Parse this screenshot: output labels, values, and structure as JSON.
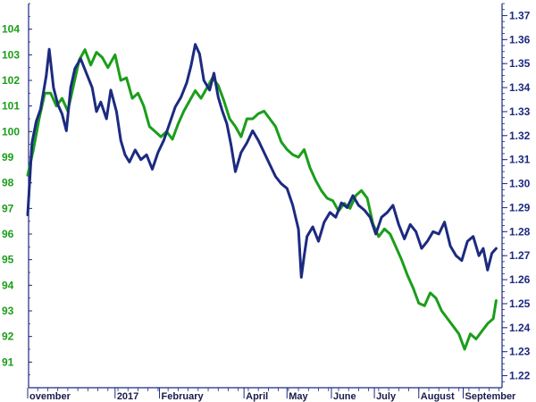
{
  "chart_data": {
    "type": "line",
    "title": "",
    "xlabel": "",
    "x_tick_labels": [
      "ovember",
      "2017",
      "February",
      "April",
      "May",
      "June",
      "July",
      "August",
      "September"
    ],
    "x_range": [
      "2016-11-01",
      "2017-09-30"
    ],
    "left_axis": {
      "ylim": [
        90,
        105
      ],
      "ticks": [
        91,
        92,
        93,
        94,
        95,
        96,
        97,
        98,
        99,
        100,
        101,
        102,
        103,
        104
      ],
      "color": "#1a9e1a"
    },
    "right_axis": {
      "ylim": [
        1.215,
        1.375
      ],
      "ticks": [
        1.22,
        1.23,
        1.24,
        1.25,
        1.26,
        1.27,
        1.28,
        1.29,
        1.3,
        1.31,
        1.32,
        1.33,
        1.34,
        1.35,
        1.36,
        1.37
      ],
      "color": "#1c2a80"
    },
    "grid": false,
    "legend": "none",
    "series": [
      {
        "axis": "left",
        "color": "#1a9e1a",
        "points": [
          [
            "2016-11-01",
            98.3
          ],
          [
            "2016-11-05",
            99.3
          ],
          [
            "2016-11-09",
            100.5
          ],
          [
            "2016-11-13",
            101.5
          ],
          [
            "2016-11-17",
            101.5
          ],
          [
            "2016-11-21",
            101.0
          ],
          [
            "2016-11-25",
            101.3
          ],
          [
            "2016-11-29",
            100.8
          ],
          [
            "2016-12-03",
            101.8
          ],
          [
            "2016-12-07",
            102.8
          ],
          [
            "2016-12-11",
            103.2
          ],
          [
            "2016-12-15",
            102.6
          ],
          [
            "2016-12-19",
            103.1
          ],
          [
            "2016-12-23",
            102.9
          ],
          [
            "2016-12-27",
            102.5
          ],
          [
            "2017-01-01",
            103.0
          ],
          [
            "2017-01-05",
            102.0
          ],
          [
            "2017-01-09",
            102.1
          ],
          [
            "2017-01-13",
            101.3
          ],
          [
            "2017-01-17",
            101.5
          ],
          [
            "2017-01-21",
            101.0
          ],
          [
            "2017-01-25",
            100.2
          ],
          [
            "2017-01-29",
            100.0
          ],
          [
            "2017-02-02",
            99.8
          ],
          [
            "2017-02-06",
            100.0
          ],
          [
            "2017-02-10",
            99.7
          ],
          [
            "2017-02-14",
            100.3
          ],
          [
            "2017-02-18",
            100.8
          ],
          [
            "2017-02-22",
            101.2
          ],
          [
            "2017-02-26",
            101.6
          ],
          [
            "2017-03-02",
            101.3
          ],
          [
            "2017-03-06",
            101.7
          ],
          [
            "2017-03-10",
            102.1
          ],
          [
            "2017-03-14",
            101.8
          ],
          [
            "2017-03-18",
            101.2
          ],
          [
            "2017-03-22",
            100.5
          ],
          [
            "2017-03-26",
            100.2
          ],
          [
            "2017-03-30",
            99.8
          ],
          [
            "2017-04-03",
            100.5
          ],
          [
            "2017-04-07",
            100.5
          ],
          [
            "2017-04-11",
            100.7
          ],
          [
            "2017-04-15",
            100.8
          ],
          [
            "2017-04-19",
            100.5
          ],
          [
            "2017-04-23",
            100.2
          ],
          [
            "2017-04-27",
            99.6
          ],
          [
            "2017-05-01",
            99.3
          ],
          [
            "2017-05-05",
            99.1
          ],
          [
            "2017-05-09",
            99.0
          ],
          [
            "2017-05-13",
            99.3
          ],
          [
            "2017-05-17",
            98.6
          ],
          [
            "2017-05-21",
            98.1
          ],
          [
            "2017-05-25",
            97.7
          ],
          [
            "2017-05-29",
            97.4
          ],
          [
            "2017-06-02",
            97.3
          ],
          [
            "2017-06-06",
            96.9
          ],
          [
            "2017-06-10",
            97.2
          ],
          [
            "2017-06-14",
            97.0
          ],
          [
            "2017-06-18",
            97.5
          ],
          [
            "2017-06-22",
            97.7
          ],
          [
            "2017-06-26",
            97.4
          ],
          [
            "2017-06-30",
            96.4
          ],
          [
            "2017-07-04",
            95.9
          ],
          [
            "2017-07-08",
            96.2
          ],
          [
            "2017-07-12",
            96.0
          ],
          [
            "2017-07-16",
            95.5
          ],
          [
            "2017-07-20",
            95.0
          ],
          [
            "2017-07-24",
            94.4
          ],
          [
            "2017-07-28",
            93.9
          ],
          [
            "2017-08-01",
            93.3
          ],
          [
            "2017-08-05",
            93.2
          ],
          [
            "2017-08-09",
            93.7
          ],
          [
            "2017-08-13",
            93.5
          ],
          [
            "2017-08-17",
            93.0
          ],
          [
            "2017-08-21",
            92.7
          ],
          [
            "2017-08-25",
            92.4
          ],
          [
            "2017-08-29",
            92.1
          ],
          [
            "2017-09-02",
            91.5
          ],
          [
            "2017-09-06",
            92.1
          ],
          [
            "2017-09-10",
            91.9
          ],
          [
            "2017-09-14",
            92.2
          ],
          [
            "2017-09-18",
            92.5
          ],
          [
            "2017-09-22",
            92.7
          ],
          [
            "2017-09-24",
            93.4
          ]
        ]
      },
      {
        "axis": "right",
        "color": "#1c2a80",
        "points": [
          [
            "2016-11-01",
            1.287
          ],
          [
            "2016-11-04",
            1.317
          ],
          [
            "2016-11-07",
            1.326
          ],
          [
            "2016-11-10",
            1.331
          ],
          [
            "2016-11-14",
            1.345
          ],
          [
            "2016-11-16",
            1.356
          ],
          [
            "2016-11-19",
            1.34
          ],
          [
            "2016-11-22",
            1.333
          ],
          [
            "2016-11-25",
            1.329
          ],
          [
            "2016-11-28",
            1.322
          ],
          [
            "2016-12-01",
            1.34
          ],
          [
            "2016-12-04",
            1.348
          ],
          [
            "2016-12-08",
            1.352
          ],
          [
            "2016-12-12",
            1.346
          ],
          [
            "2016-12-16",
            1.34
          ],
          [
            "2016-12-19",
            1.33
          ],
          [
            "2016-12-22",
            1.334
          ],
          [
            "2016-12-26",
            1.327
          ],
          [
            "2016-12-29",
            1.339
          ],
          [
            "2017-01-02",
            1.33
          ],
          [
            "2017-01-05",
            1.318
          ],
          [
            "2017-01-08",
            1.312
          ],
          [
            "2017-01-11",
            1.309
          ],
          [
            "2017-01-15",
            1.314
          ],
          [
            "2017-01-19",
            1.31
          ],
          [
            "2017-01-23",
            1.312
          ],
          [
            "2017-01-27",
            1.306
          ],
          [
            "2017-01-31",
            1.313
          ],
          [
            "2017-02-04",
            1.318
          ],
          [
            "2017-02-08",
            1.325
          ],
          [
            "2017-02-12",
            1.332
          ],
          [
            "2017-02-16",
            1.336
          ],
          [
            "2017-02-20",
            1.342
          ],
          [
            "2017-02-23",
            1.349
          ],
          [
            "2017-02-26",
            1.358
          ],
          [
            "2017-03-01",
            1.354
          ],
          [
            "2017-03-04",
            1.343
          ],
          [
            "2017-03-08",
            1.339
          ],
          [
            "2017-03-11",
            1.346
          ],
          [
            "2017-03-14",
            1.336
          ],
          [
            "2017-03-17",
            1.33
          ],
          [
            "2017-03-20",
            1.325
          ],
          [
            "2017-03-23",
            1.316
          ],
          [
            "2017-03-26",
            1.305
          ],
          [
            "2017-03-30",
            1.313
          ],
          [
            "2017-04-03",
            1.317
          ],
          [
            "2017-04-07",
            1.322
          ],
          [
            "2017-04-11",
            1.318
          ],
          [
            "2017-04-15",
            1.313
          ],
          [
            "2017-04-19",
            1.308
          ],
          [
            "2017-04-23",
            1.303
          ],
          [
            "2017-04-27",
            1.3
          ],
          [
            "2017-05-01",
            1.298
          ],
          [
            "2017-05-05",
            1.291
          ],
          [
            "2017-05-07",
            1.286
          ],
          [
            "2017-05-09",
            1.281
          ],
          [
            "2017-05-11",
            1.261
          ],
          [
            "2017-05-13",
            1.27
          ],
          [
            "2017-05-15",
            1.278
          ],
          [
            "2017-05-19",
            1.282
          ],
          [
            "2017-05-23",
            1.276
          ],
          [
            "2017-05-27",
            1.284
          ],
          [
            "2017-05-31",
            1.288
          ],
          [
            "2017-06-04",
            1.286
          ],
          [
            "2017-06-08",
            1.292
          ],
          [
            "2017-06-12",
            1.29
          ],
          [
            "2017-06-16",
            1.295
          ],
          [
            "2017-06-20",
            1.291
          ],
          [
            "2017-06-24",
            1.289
          ],
          [
            "2017-06-28",
            1.286
          ],
          [
            "2017-07-02",
            1.279
          ],
          [
            "2017-07-06",
            1.286
          ],
          [
            "2017-07-10",
            1.288
          ],
          [
            "2017-07-14",
            1.291
          ],
          [
            "2017-07-18",
            1.283
          ],
          [
            "2017-07-22",
            1.277
          ],
          [
            "2017-07-26",
            1.283
          ],
          [
            "2017-07-30",
            1.28
          ],
          [
            "2017-08-03",
            1.273
          ],
          [
            "2017-08-07",
            1.276
          ],
          [
            "2017-08-11",
            1.28
          ],
          [
            "2017-08-15",
            1.279
          ],
          [
            "2017-08-19",
            1.284
          ],
          [
            "2017-08-23",
            1.274
          ],
          [
            "2017-08-27",
            1.27
          ],
          [
            "2017-08-31",
            1.268
          ],
          [
            "2017-09-04",
            1.276
          ],
          [
            "2017-09-08",
            1.278
          ],
          [
            "2017-09-12",
            1.27
          ],
          [
            "2017-09-15",
            1.273
          ],
          [
            "2017-09-18",
            1.264
          ],
          [
            "2017-09-21",
            1.271
          ],
          [
            "2017-09-24",
            1.273
          ]
        ]
      }
    ]
  }
}
